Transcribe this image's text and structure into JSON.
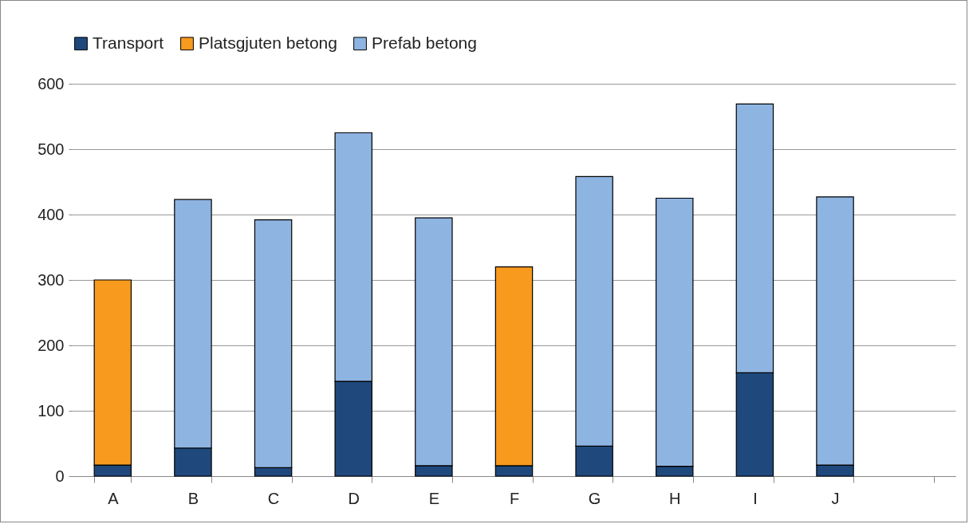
{
  "chart_data": {
    "type": "bar",
    "stacked": true,
    "categories": [
      "A",
      "B",
      "C",
      "D",
      "E",
      "F",
      "G",
      "H",
      "I",
      "J",
      null
    ],
    "series": [
      {
        "name": "Transport",
        "color": "#1f497d",
        "values": [
          17,
          43,
          13,
          145,
          16,
          16,
          46,
          15,
          158,
          17,
          null
        ]
      },
      {
        "name": "Platsgjuten betong",
        "color": "#f79a1e",
        "values": [
          283,
          null,
          null,
          null,
          null,
          304,
          null,
          null,
          null,
          null,
          null
        ]
      },
      {
        "name": "Prefab betong",
        "color": "#8eb4e1",
        "values": [
          null,
          380,
          379,
          380,
          379,
          null,
          412,
          410,
          411,
          410,
          null
        ]
      }
    ],
    "ylim": [
      0,
      600
    ],
    "yticks": [
      0,
      100,
      200,
      300,
      400,
      500,
      600
    ],
    "grid": "y",
    "legend": "top"
  }
}
